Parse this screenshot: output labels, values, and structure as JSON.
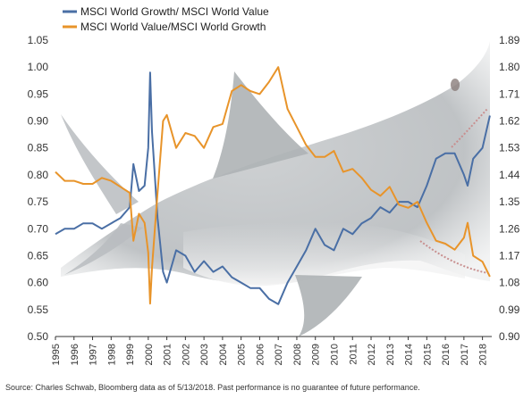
{
  "chart_data": {
    "type": "line",
    "title": "",
    "x": [
      1995.0,
      1995.5,
      1996.0,
      1996.5,
      1997.0,
      1997.5,
      1998.0,
      1998.5,
      1999.0,
      1999.2,
      1999.5,
      1999.8,
      2000.0,
      2000.1,
      2000.2,
      2000.5,
      2000.8,
      2001.0,
      2001.5,
      2002.0,
      2002.5,
      2003.0,
      2003.5,
      2004.0,
      2004.5,
      2005.0,
      2005.5,
      2006.0,
      2006.5,
      2007.0,
      2007.5,
      2008.0,
      2008.5,
      2009.0,
      2009.5,
      2010.0,
      2010.5,
      2011.0,
      2011.5,
      2012.0,
      2012.5,
      2013.0,
      2013.5,
      2014.0,
      2014.5,
      2015.0,
      2015.5,
      2016.0,
      2016.5,
      2017.0,
      2017.2,
      2017.5,
      2018.0,
      2018.4
    ],
    "series": [
      {
        "name": "MSCI World Growth/ MSCI World Value",
        "axis": "left",
        "color": "#4a6fa5",
        "values": [
          0.69,
          0.7,
          0.7,
          0.71,
          0.71,
          0.7,
          0.71,
          0.72,
          0.74,
          0.82,
          0.77,
          0.78,
          0.85,
          0.99,
          0.88,
          0.72,
          0.62,
          0.6,
          0.66,
          0.65,
          0.62,
          0.64,
          0.62,
          0.63,
          0.61,
          0.6,
          0.59,
          0.59,
          0.57,
          0.56,
          0.6,
          0.63,
          0.66,
          0.7,
          0.67,
          0.66,
          0.7,
          0.69,
          0.71,
          0.72,
          0.74,
          0.73,
          0.75,
          0.75,
          0.74,
          0.78,
          0.83,
          0.84,
          0.84,
          0.8,
          0.78,
          0.83,
          0.85,
          0.91
        ]
      },
      {
        "name": "MSCI World Value/MSCI World Growth",
        "axis": "right",
        "color": "#e8942a",
        "values": [
          1.45,
          1.42,
          1.42,
          1.41,
          1.41,
          1.43,
          1.42,
          1.4,
          1.38,
          1.22,
          1.31,
          1.28,
          1.18,
          1.01,
          1.13,
          1.38,
          1.62,
          1.64,
          1.53,
          1.58,
          1.57,
          1.53,
          1.6,
          1.61,
          1.72,
          1.74,
          1.72,
          1.71,
          1.75,
          1.8,
          1.66,
          1.6,
          1.54,
          1.5,
          1.5,
          1.52,
          1.45,
          1.46,
          1.43,
          1.39,
          1.37,
          1.4,
          1.34,
          1.33,
          1.35,
          1.28,
          1.22,
          1.21,
          1.19,
          1.23,
          1.28,
          1.17,
          1.15,
          1.1
        ]
      }
    ],
    "left_axis": {
      "ylim": [
        0.5,
        1.05
      ],
      "ticks": [
        "0.50",
        "0.55",
        "0.60",
        "0.65",
        "0.70",
        "0.75",
        "0.80",
        "0.85",
        "0.90",
        "0.95",
        "1.00",
        "1.05"
      ]
    },
    "right_axis": {
      "ylim": [
        0.9,
        1.89
      ],
      "ticks": [
        "0.90",
        "0.99",
        "1.08",
        "1.17",
        "1.26",
        "1.35",
        "1.44",
        "1.53",
        "1.62",
        "1.71",
        "1.80",
        "1.89"
      ]
    },
    "x_ticks": [
      "1995",
      "1996",
      "1997",
      "1998",
      "1999",
      "2000",
      "2001",
      "2002",
      "2003",
      "2004",
      "2005",
      "2006",
      "2007",
      "2008",
      "2009",
      "2010",
      "2011",
      "2012",
      "2013",
      "2014",
      "2015",
      "2016",
      "2017",
      "2018"
    ],
    "xlim": [
      1995,
      2018.5
    ],
    "grid": false,
    "legend_position": "top-left"
  },
  "footer": {
    "source": "Source: Charles Schwab, Bloomberg data as of 5/13/2018.  Past performance is no guarantee of future performance."
  }
}
